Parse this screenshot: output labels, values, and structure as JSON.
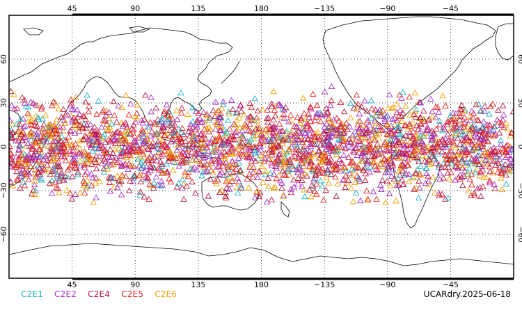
{
  "map": {
    "lon_ticks": [
      "45",
      "90",
      "135",
      "180",
      "−135",
      "−90",
      "−45"
    ],
    "lat_ticks": [
      "60",
      "30",
      "0",
      "−30",
      "−60"
    ],
    "lon_range": [
      0,
      360
    ],
    "lat_range": [
      -90,
      90
    ],
    "grid": "dotted",
    "land_outline_color": "#000000"
  },
  "legend": {
    "series": [
      {
        "label": "C2E1",
        "color": "#19b0c8"
      },
      {
        "label": "C2E2",
        "color": "#a02cc8"
      },
      {
        "label": "C2E4",
        "color": "#b4143c"
      },
      {
        "label": "C2E5",
        "color": "#e61e1e"
      },
      {
        "label": "C2E6",
        "color": "#f0a000"
      }
    ]
  },
  "footer": {
    "product_date": "UCARdry.2025-06-18"
  },
  "observations": {
    "marker": "triangle-open",
    "lat_band": [
      -45,
      45
    ],
    "series_weights": [
      0.12,
      0.22,
      0.22,
      0.24,
      0.2
    ]
  }
}
